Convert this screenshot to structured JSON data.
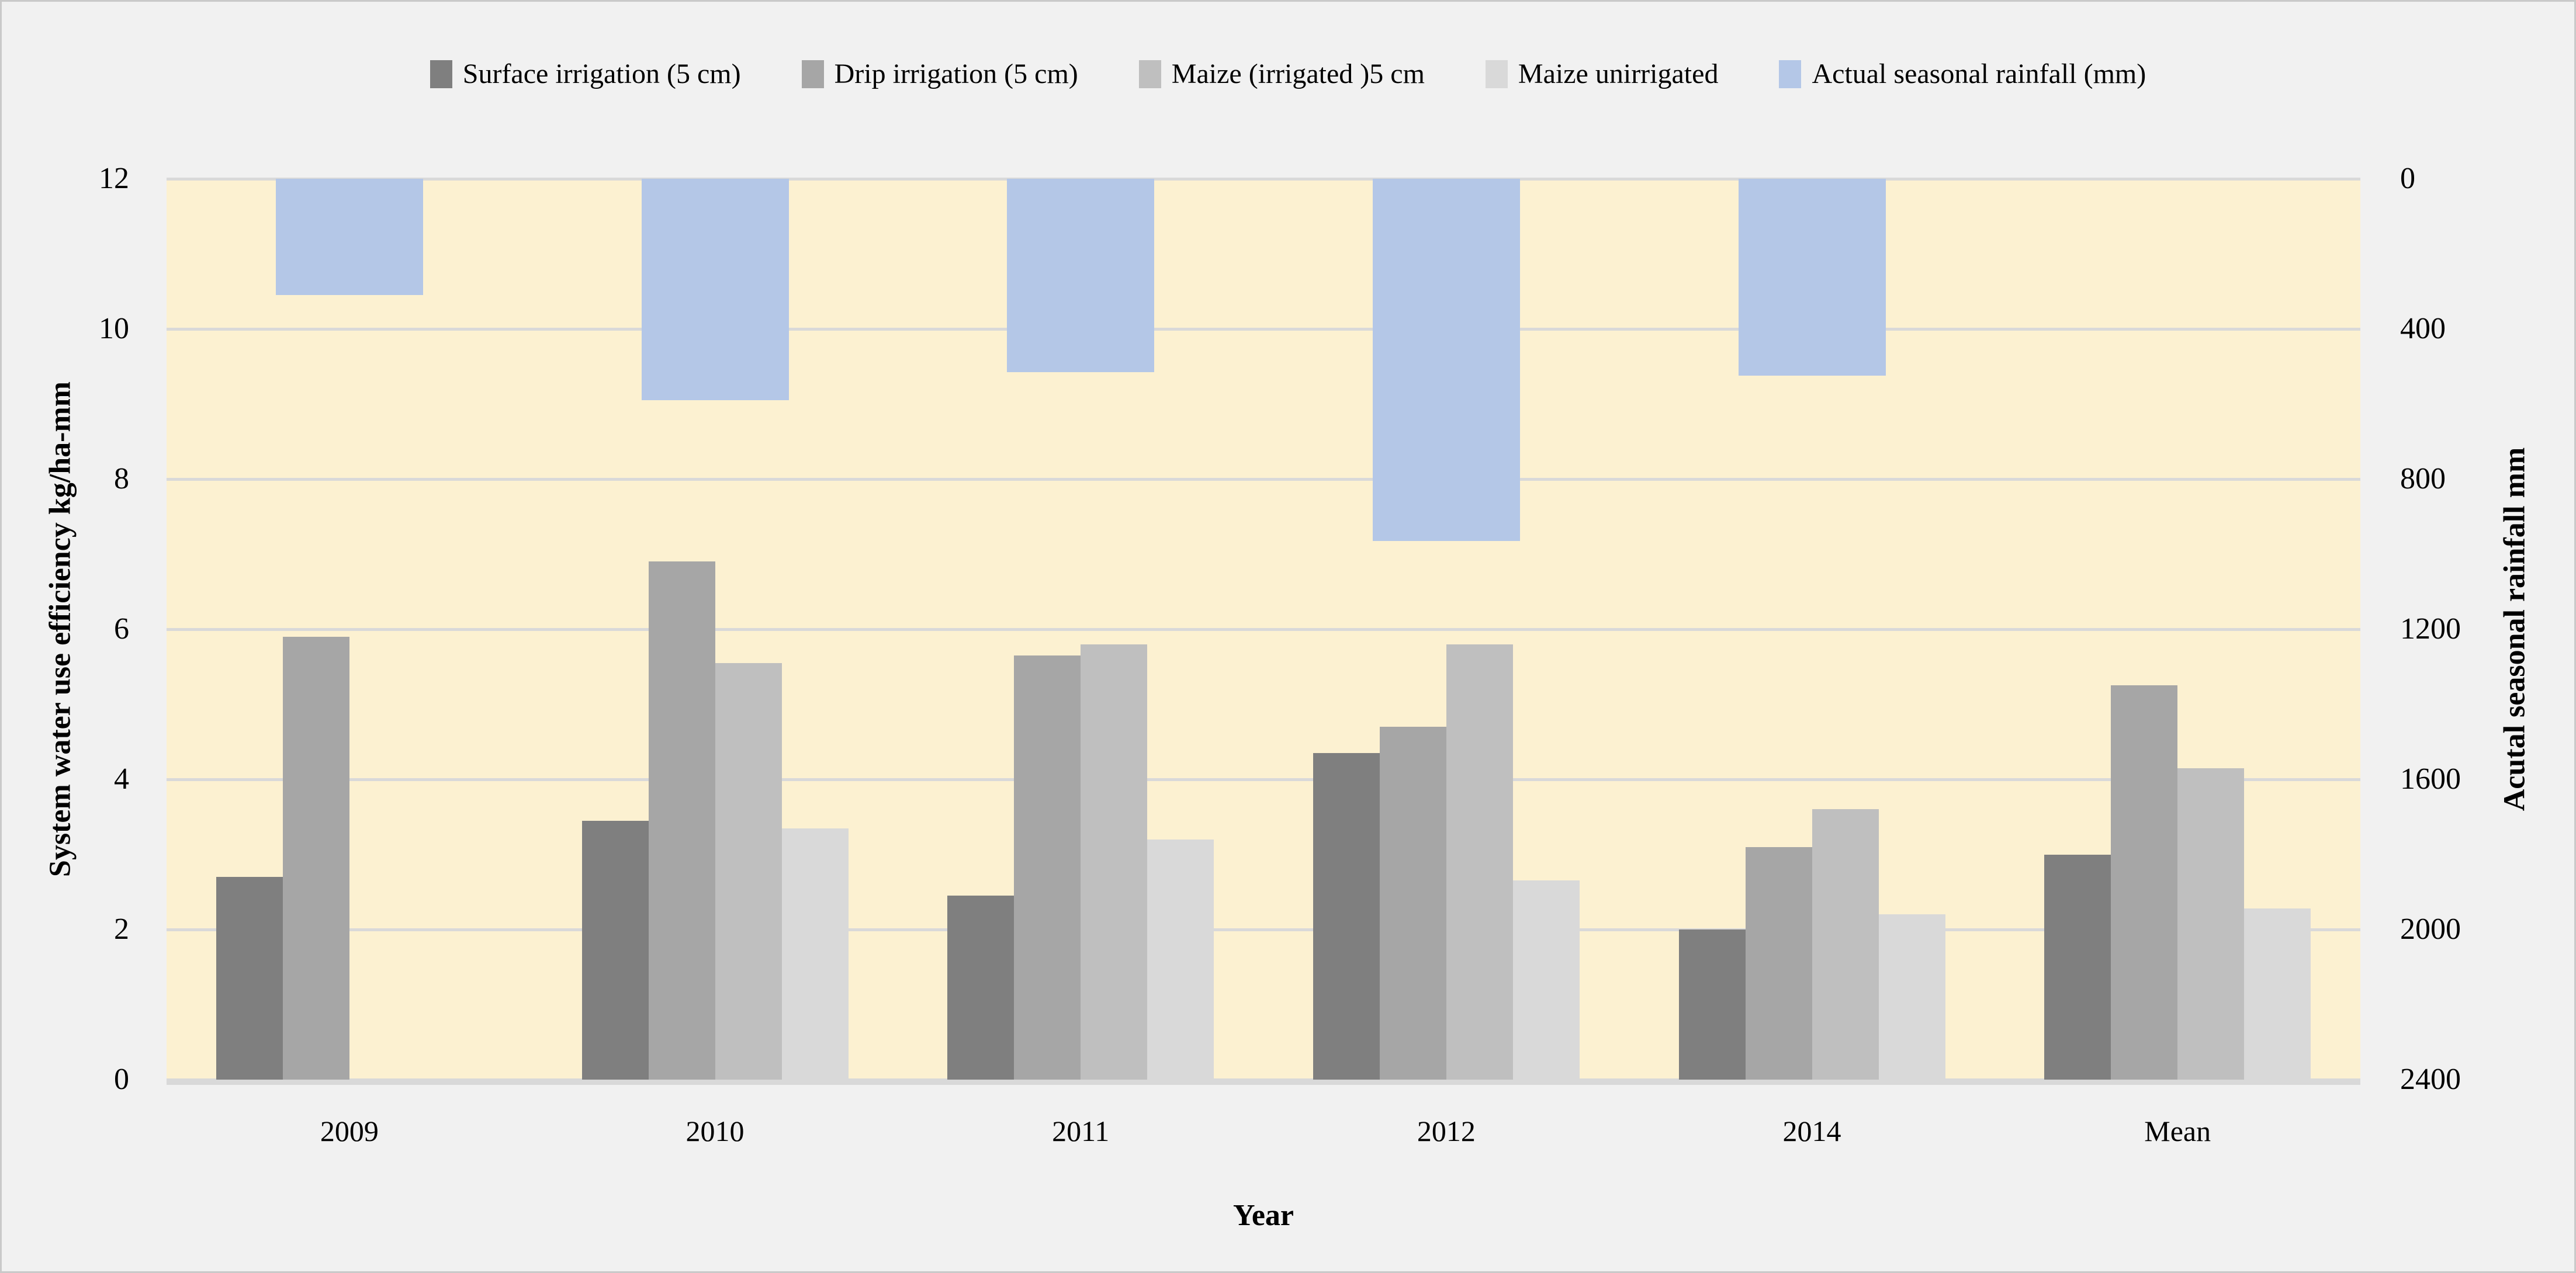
{
  "chart_data": {
    "type": "bar",
    "title": "",
    "categories": [
      "2009",
      "2010",
      "2011",
      "2012",
      "2014",
      "Mean"
    ],
    "series": [
      {
        "name": "Surface irrigation (5 cm)",
        "axis": "left",
        "color": "#7f7f7f",
        "values": [
          2.7,
          3.45,
          2.45,
          4.35,
          2.0,
          3.0
        ]
      },
      {
        "name": "Drip irrigation (5 cm)",
        "axis": "left",
        "color": "#a6a6a6",
        "values": [
          5.9,
          6.9,
          5.65,
          4.7,
          3.1,
          5.25
        ]
      },
      {
        "name": "Maize (irrigated )5 cm",
        "axis": "left",
        "color": "#bfbfbf",
        "values": [
          0,
          5.55,
          5.8,
          5.8,
          3.6,
          4.15
        ]
      },
      {
        "name": "Maize unirrigated",
        "axis": "left",
        "color": "#d9d9d9",
        "values": [
          0,
          3.35,
          3.2,
          2.65,
          2.2,
          2.28
        ]
      },
      {
        "name": "Actual seasonal rainfall (mm)",
        "axis": "right",
        "color": "#b4c7e7",
        "values": [
          310,
          590,
          515,
          965,
          525,
          null
        ]
      }
    ],
    "left_axis": {
      "title": "System water use efficiency kg/ha-mm",
      "min": 0,
      "max": 12,
      "ticks": [
        0,
        2,
        4,
        6,
        8,
        10,
        12
      ]
    },
    "right_axis": {
      "title": "Acutal seasonal rainfall mm",
      "min": 0,
      "max": 2400,
      "ticks": [
        0,
        400,
        800,
        1200,
        1600,
        2000,
        2400
      ],
      "inverted": true
    },
    "x_axis": {
      "title": "Year"
    },
    "grid": true,
    "legend_position": "top",
    "colors": {
      "plot_background": "#fcf1d1",
      "page_background": "#f1f1f1",
      "gridline": "#d9d9d9",
      "border": "#c9c9c9"
    }
  }
}
